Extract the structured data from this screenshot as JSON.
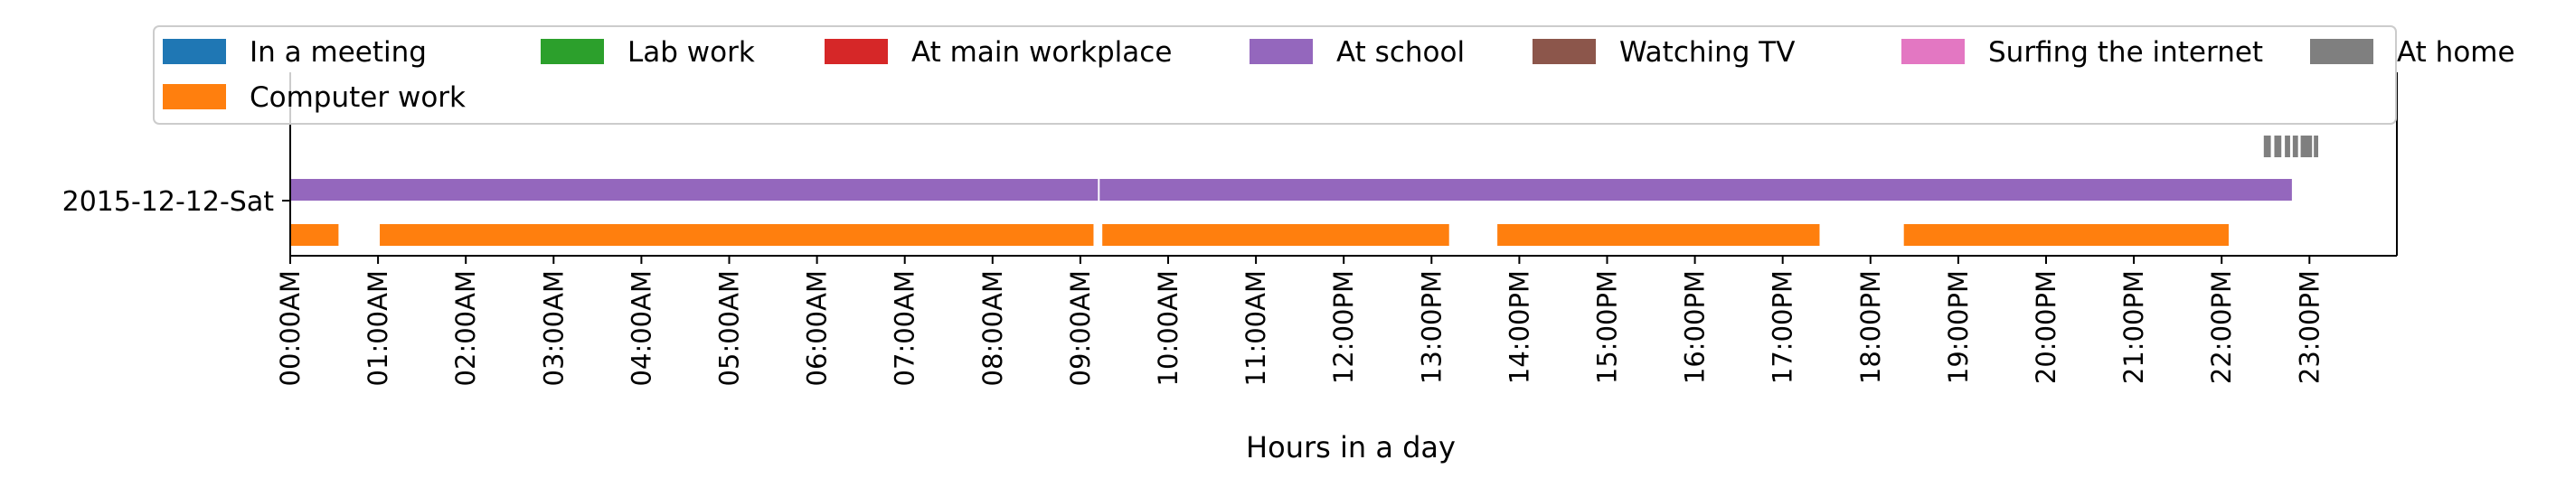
{
  "chart_data": {
    "type": "timeline",
    "title": "",
    "xlabel": "Hours in a day",
    "ylabel": "",
    "xlim": [
      0,
      24
    ],
    "grid": false,
    "legend_position": "top",
    "categories": [
      "2015-12-12-Sat"
    ],
    "x_ticks": [
      {
        "value": 0,
        "label": "00:00AM"
      },
      {
        "value": 1,
        "label": "01:00AM"
      },
      {
        "value": 2,
        "label": "02:00AM"
      },
      {
        "value": 3,
        "label": "03:00AM"
      },
      {
        "value": 4,
        "label": "04:00AM"
      },
      {
        "value": 5,
        "label": "05:00AM"
      },
      {
        "value": 6,
        "label": "06:00AM"
      },
      {
        "value": 7,
        "label": "07:00AM"
      },
      {
        "value": 8,
        "label": "08:00AM"
      },
      {
        "value": 9,
        "label": "09:00AM"
      },
      {
        "value": 10,
        "label": "10:00AM"
      },
      {
        "value": 11,
        "label": "11:00AM"
      },
      {
        "value": 12,
        "label": "12:00PM"
      },
      {
        "value": 13,
        "label": "13:00PM"
      },
      {
        "value": 14,
        "label": "14:00PM"
      },
      {
        "value": 15,
        "label": "15:00PM"
      },
      {
        "value": 16,
        "label": "16:00PM"
      },
      {
        "value": 17,
        "label": "17:00PM"
      },
      {
        "value": 18,
        "label": "18:00PM"
      },
      {
        "value": 19,
        "label": "19:00PM"
      },
      {
        "value": 20,
        "label": "20:00PM"
      },
      {
        "value": 21,
        "label": "21:00PM"
      },
      {
        "value": 22,
        "label": "22:00PM"
      },
      {
        "value": 23,
        "label": "23:00PM"
      }
    ],
    "series": [
      {
        "name": "In a meeting",
        "color": "#1f77b4",
        "segments": []
      },
      {
        "name": "Computer work",
        "color": "#ff7f0e",
        "segments": [
          [
            0.0,
            0.55
          ],
          [
            1.02,
            9.15
          ],
          [
            9.25,
            13.2
          ],
          [
            13.75,
            17.42
          ],
          [
            18.38,
            22.08
          ]
        ]
      },
      {
        "name": "Lab work",
        "color": "#2ca02c",
        "segments": []
      },
      {
        "name": "At main workplace",
        "color": "#d62728",
        "segments": []
      },
      {
        "name": "At school",
        "color": "#9467bd",
        "segments": [
          [
            0.0,
            9.2
          ],
          [
            9.22,
            22.8
          ]
        ]
      },
      {
        "name": "Watching TV",
        "color": "#8c564b",
        "segments": []
      },
      {
        "name": "Surfing the internet",
        "color": "#e377c2",
        "segments": []
      },
      {
        "name": "At home",
        "color": "#7f7f7f",
        "segments": [
          [
            22.48,
            22.56
          ],
          [
            22.6,
            22.68
          ],
          [
            22.72,
            22.78
          ],
          [
            22.81,
            22.87
          ],
          [
            22.9,
            23.03
          ],
          [
            23.05,
            23.1
          ]
        ]
      }
    ]
  }
}
